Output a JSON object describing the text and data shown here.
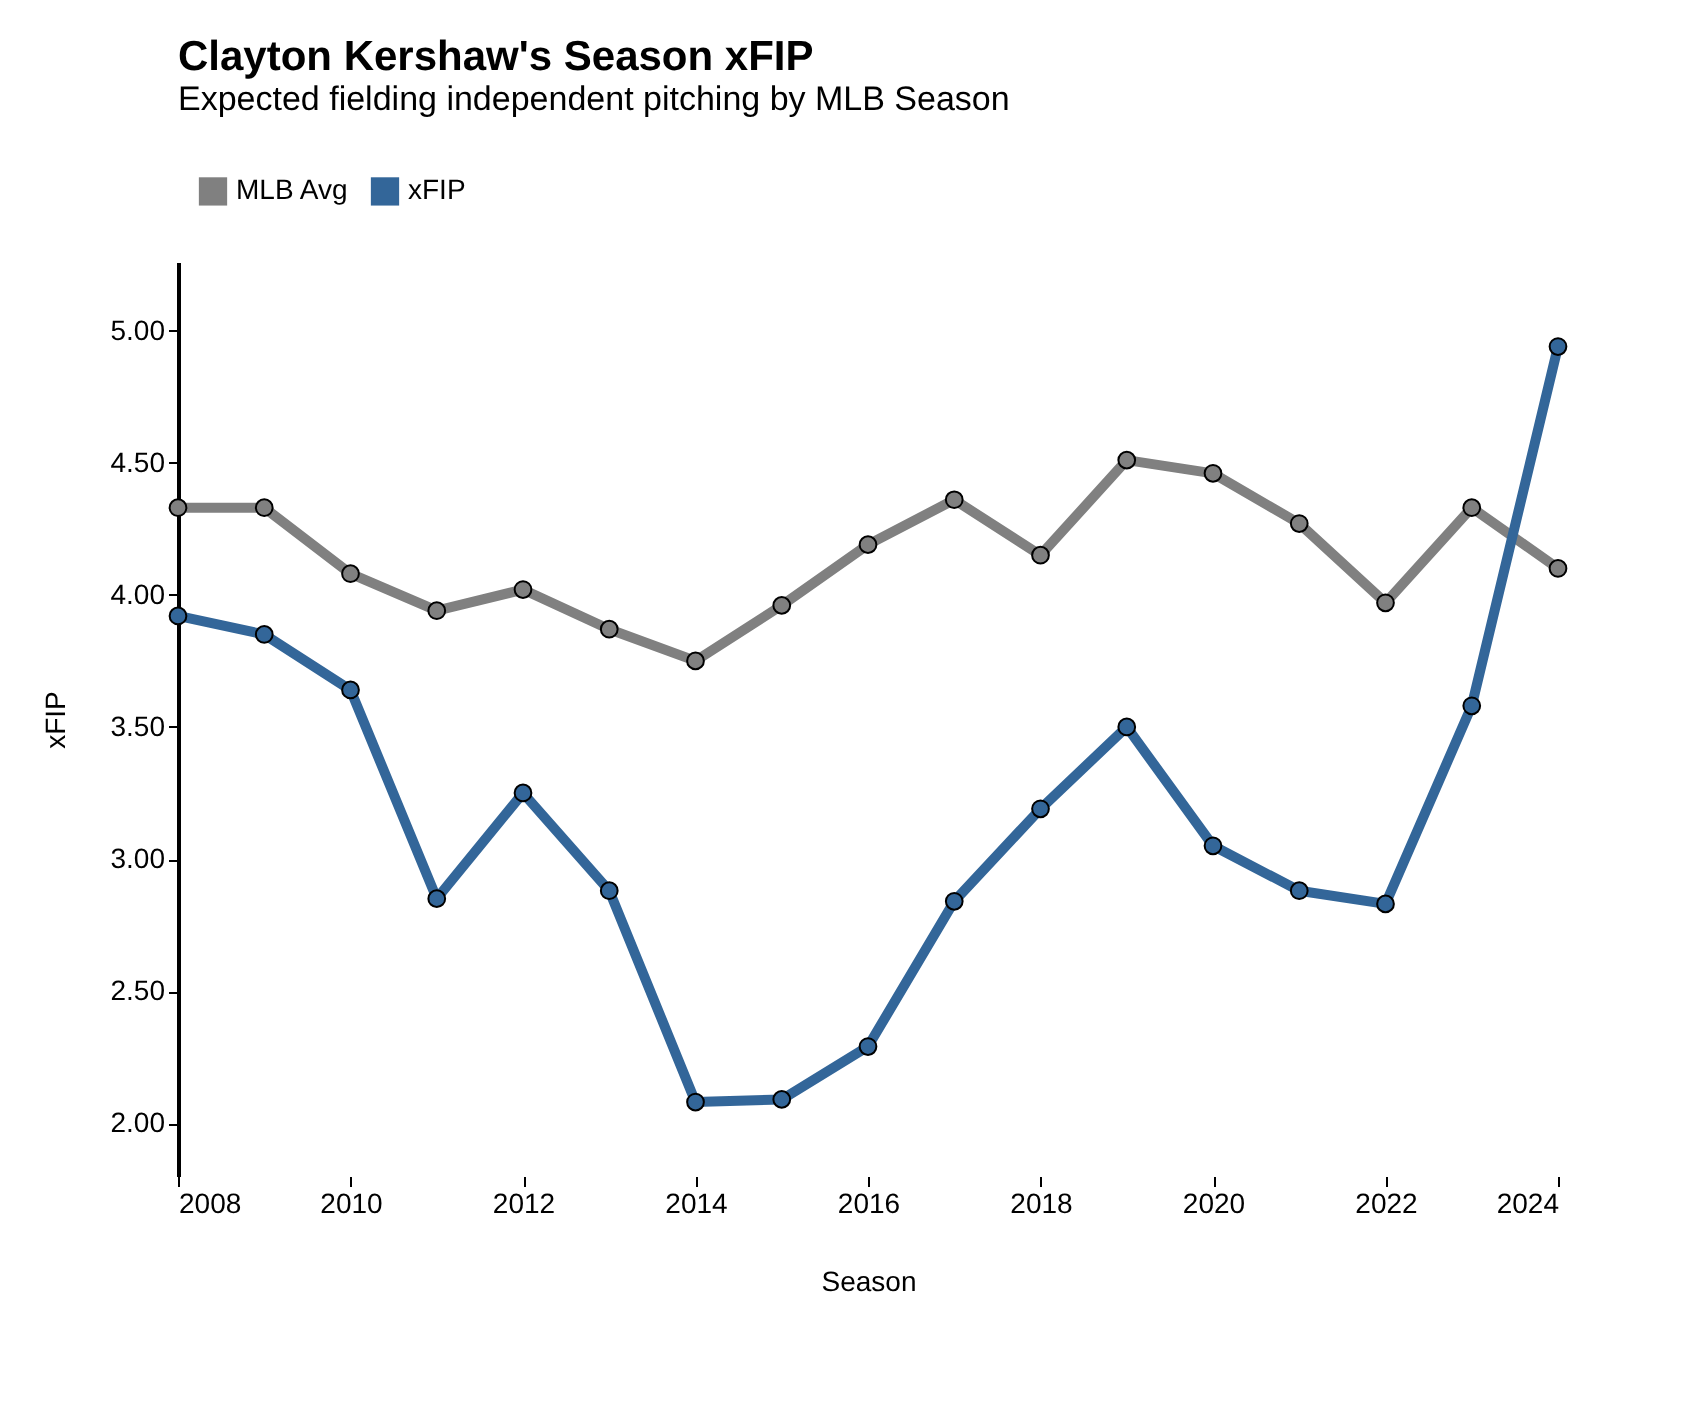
{
  "chart_data": {
    "type": "line",
    "title": "Clayton Kershaw's Season xFIP",
    "subtitle": "Expected fielding independent pitching by MLB Season",
    "xlabel": "Season",
    "ylabel": "xFIP",
    "x": [
      2008,
      2009,
      2010,
      2011,
      2012,
      2013,
      2014,
      2015,
      2016,
      2017,
      2018,
      2019,
      2020,
      2021,
      2022,
      2023,
      2024
    ],
    "series": [
      {
        "name": "MLB Avg",
        "color": "#808080",
        "values": [
          4.33,
          4.33,
          4.08,
          3.94,
          4.02,
          3.87,
          3.75,
          3.96,
          4.19,
          4.36,
          4.15,
          4.51,
          4.46,
          4.27,
          3.97,
          4.33,
          4.1
        ]
      },
      {
        "name": "xFIP",
        "color": "#336699",
        "values": [
          3.92,
          3.85,
          3.64,
          2.85,
          3.25,
          2.88,
          2.08,
          2.09,
          2.29,
          2.84,
          3.19,
          3.5,
          3.05,
          2.88,
          2.83,
          3.58,
          4.94
        ]
      }
    ],
    "xlim": [
      2008,
      2024
    ],
    "xticks": [
      2008,
      2010,
      2012,
      2014,
      2016,
      2018,
      2020,
      2022,
      2024
    ],
    "ylim": [
      1.8,
      5.26
    ],
    "yticks": [
      {
        "value": 2,
        "label": "2.00"
      },
      {
        "value": 2.5,
        "label": "2.50"
      },
      {
        "value": 3,
        "label": "3.00"
      },
      {
        "value": 3.5,
        "label": "3.50"
      },
      {
        "value": 4,
        "label": "4.00"
      },
      {
        "value": 4.5,
        "label": "4.50"
      },
      {
        "value": 5,
        "label": "5.00"
      }
    ],
    "grid": false,
    "legend": "top",
    "marker": "circle",
    "line_style": "solid"
  }
}
